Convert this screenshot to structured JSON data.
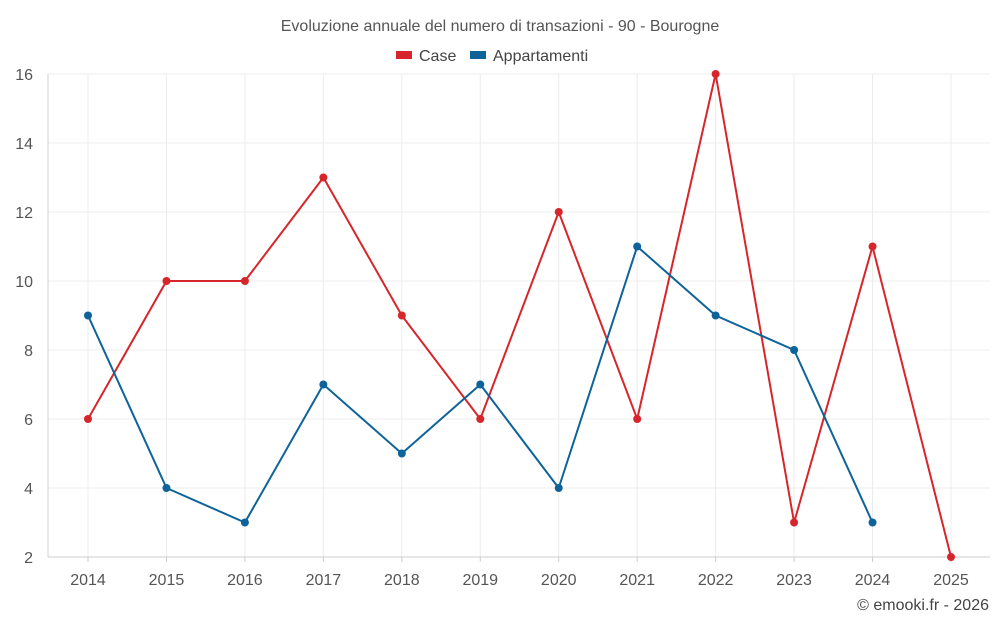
{
  "chart_data": {
    "type": "line",
    "title": "Evoluzione annuale del numero di transazioni - 90 - Bourogne",
    "categories": [
      "2014",
      "2015",
      "2016",
      "2017",
      "2018",
      "2019",
      "2020",
      "2021",
      "2022",
      "2023",
      "2024",
      "2025"
    ],
    "series": [
      {
        "name": "Case",
        "color": "#d7262b",
        "values": [
          6,
          10,
          10,
          13,
          9,
          6,
          12,
          6,
          16,
          3,
          11,
          2
        ]
      },
      {
        "name": "Appartamenti",
        "color": "#0e6399",
        "values": [
          9,
          4,
          3,
          7,
          5,
          7,
          4,
          11,
          9,
          8,
          3,
          null
        ]
      }
    ],
    "y_ticks": [
      "2",
      "4",
      "6",
      "8",
      "10",
      "12",
      "14",
      "16"
    ],
    "ylim": [
      2,
      16
    ],
    "grid": true,
    "legend": "top-center",
    "xlabel": "",
    "ylabel": ""
  },
  "credit": "© emooki.fr - 2026"
}
